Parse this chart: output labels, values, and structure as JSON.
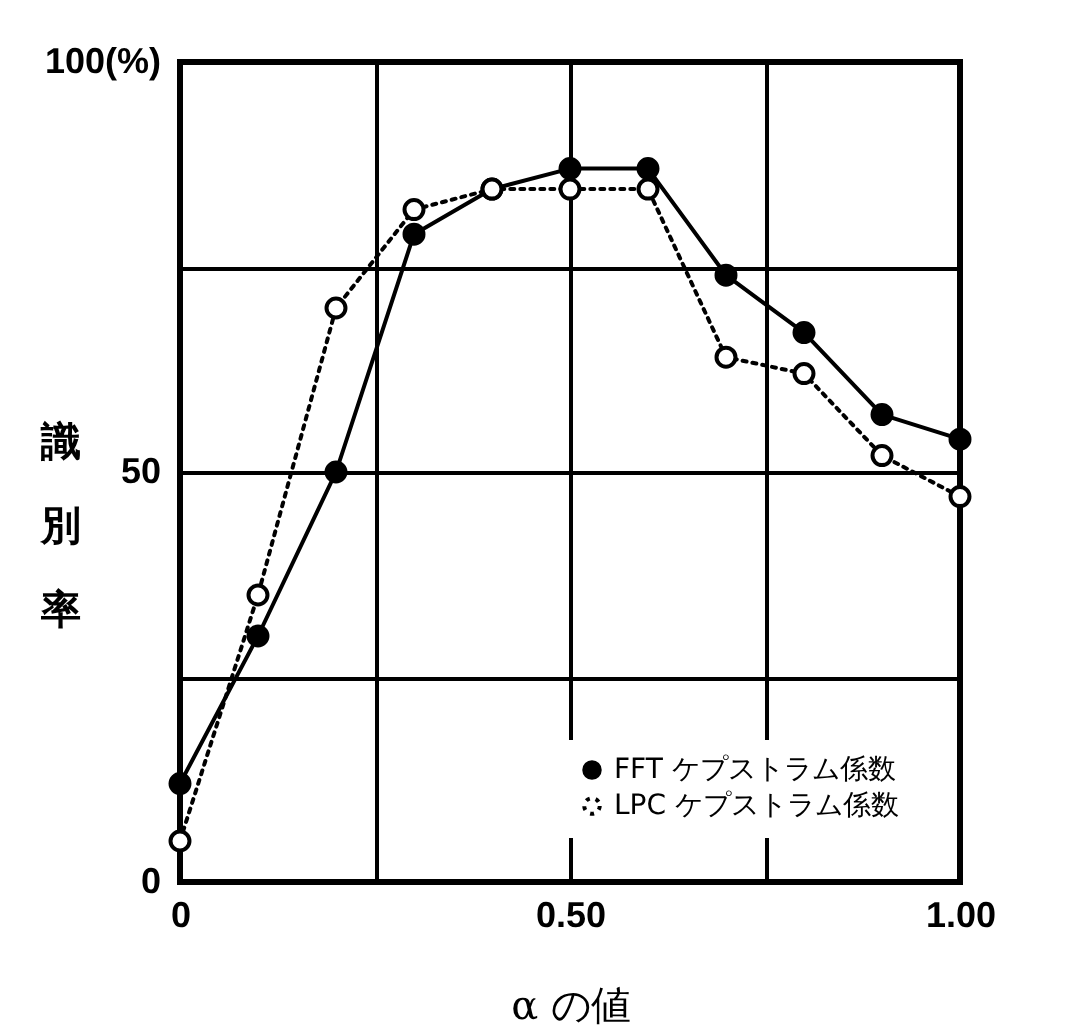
{
  "chart_data": {
    "type": "line",
    "xlabel": "α の値",
    "ylabel": "識別率",
    "x": [
      0,
      0.1,
      0.2,
      0.3,
      0.4,
      0.5,
      0.6,
      0.7,
      0.8,
      0.9,
      1.0
    ],
    "series": [
      {
        "name": "FFT ケプストラム係数",
        "color": "#000000",
        "line_style": "solid",
        "values": [
          12,
          30,
          50,
          79,
          84.5,
          87,
          87,
          74,
          67,
          57,
          54
        ]
      },
      {
        "name": "LPC ケプストラム係数",
        "color": "#000000",
        "line_style": "dotted",
        "values": [
          5,
          35,
          70,
          82,
          84.5,
          84.5,
          84.5,
          64,
          62,
          52,
          47
        ]
      }
    ],
    "xlim": [
      0,
      1
    ],
    "ylim": [
      0,
      100
    ],
    "xticks": [
      0,
      {
        "value": 0.25,
        "label": null
      },
      {
        "value": 0.5,
        "label": "0.50"
      },
      {
        "value": 0.75,
        "label": null
      },
      {
        "value": 1,
        "label": "1.00"
      }
    ],
    "yticks": [
      0,
      {
        "value": 25,
        "label": null
      },
      50,
      {
        "value": 75,
        "label": null
      },
      {
        "value": 100,
        "label": "100(%)"
      }
    ],
    "grid": true,
    "legend": "bottom right",
    "marker": "circle"
  }
}
